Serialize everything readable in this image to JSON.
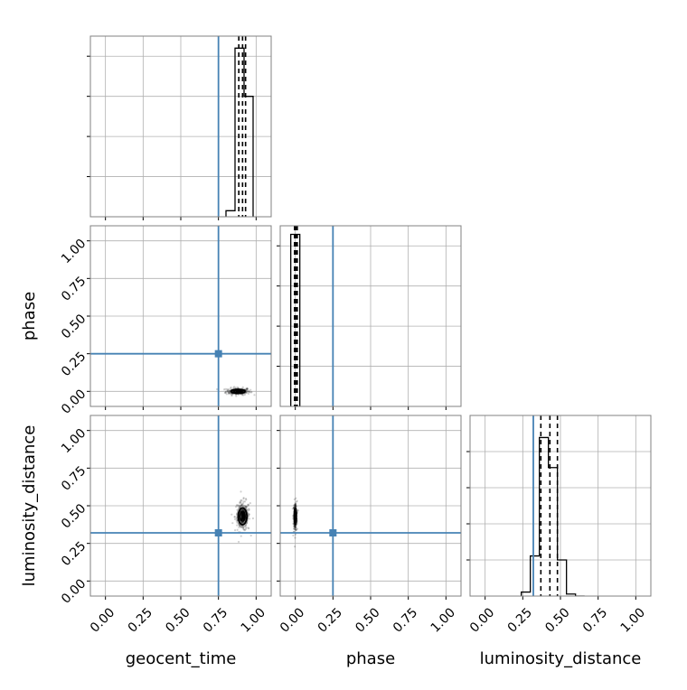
{
  "chart_data": {
    "type": "corner",
    "parameters": [
      "geocent_time",
      "phase",
      "luminosity_distance"
    ],
    "tick_labels": [
      "0.00",
      "0.25",
      "0.50",
      "0.75",
      "1.00"
    ],
    "axis_range": [
      -0.1,
      1.1
    ],
    "truths": {
      "geocent_time": 0.75,
      "phase": 0.25,
      "luminosity_distance": 0.32
    },
    "grid": true,
    "colors": {
      "truth": "#4682b4",
      "hist": "#000000",
      "grid": "#b0b0b0",
      "frame": "#808080"
    },
    "diagonal": [
      {
        "parameter": "geocent_time",
        "bin_edges": [
          0.8,
          0.86,
          0.92,
          0.98
        ],
        "counts": [
          0.1,
          2.8,
          2.0
        ],
        "ymax": 3.0,
        "quantiles": [
          0.885,
          0.91,
          0.93
        ]
      },
      {
        "parameter": "phase",
        "bin_edges": [
          -0.03,
          0.0,
          0.03
        ],
        "counts": [
          1.0,
          1.0
        ],
        "ymax": 1.05,
        "quantiles": [
          -0.005,
          0.003,
          0.013
        ]
      },
      {
        "parameter": "luminosity_distance",
        "bin_edges": [
          0.24,
          0.3,
          0.36,
          0.42,
          0.48,
          0.54,
          0.6,
          0.66
        ],
        "counts": [
          0.1,
          1.0,
          3.95,
          3.2,
          0.9,
          0.05,
          0.0
        ],
        "ymax": 4.5,
        "quantiles": [
          0.37,
          0.43,
          0.48
        ]
      }
    ],
    "pairs": [
      {
        "x": "geocent_time",
        "y": "phase",
        "center": [
          0.88,
          0.0
        ],
        "spread": [
          0.04,
          0.012
        ]
      },
      {
        "x": "geocent_time",
        "y": "luminosity_distance",
        "center": [
          0.91,
          0.43
        ],
        "spread": [
          0.025,
          0.05
        ]
      },
      {
        "x": "phase",
        "y": "luminosity_distance",
        "center": [
          0.0,
          0.43
        ],
        "spread": [
          0.006,
          0.05
        ]
      }
    ]
  }
}
